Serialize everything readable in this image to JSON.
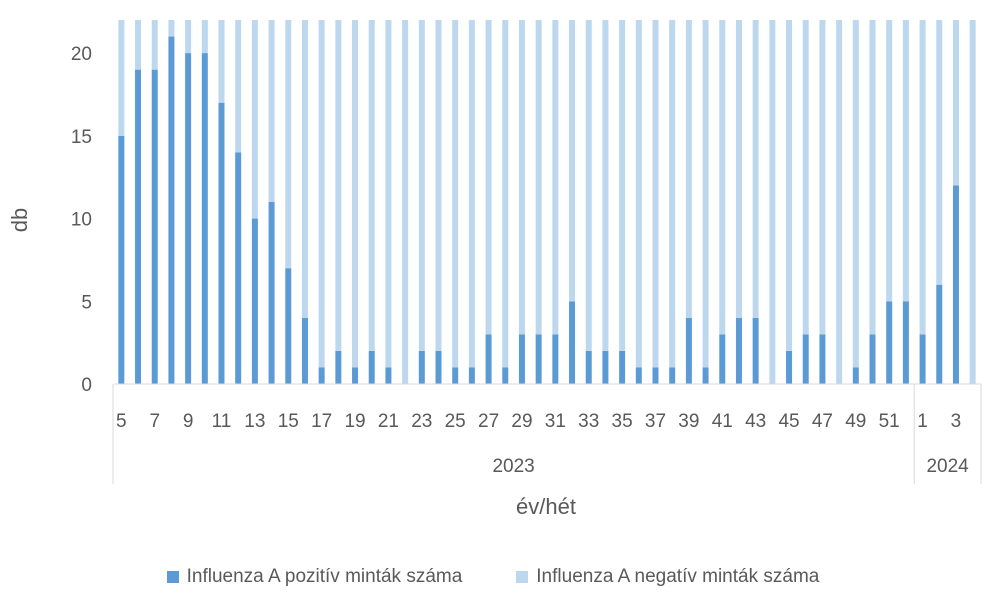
{
  "chart_data": {
    "type": "bar",
    "stacked": true,
    "xlabel": "év/hét",
    "ylabel": "db",
    "ylim": [
      0,
      22
    ],
    "yticks": [
      0,
      5,
      10,
      15,
      20
    ],
    "grid": false,
    "legend_position": "bottom",
    "categories": [
      "5",
      "6",
      "7",
      "8",
      "9",
      "10",
      "11",
      "12",
      "13",
      "14",
      "15",
      "16",
      "17",
      "18",
      "19",
      "20",
      "21",
      "22",
      "23",
      "24",
      "25",
      "26",
      "27",
      "28",
      "29",
      "30",
      "31",
      "32",
      "33",
      "34",
      "35",
      "36",
      "37",
      "38",
      "39",
      "40",
      "41",
      "42",
      "43",
      "44",
      "45",
      "46",
      "47",
      "48",
      "49",
      "50",
      "51",
      "52",
      "1",
      "2",
      "3",
      "4"
    ],
    "year_groups": [
      {
        "label": "2023",
        "start": 0,
        "end": 47
      },
      {
        "label": "2024",
        "start": 48,
        "end": 51
      }
    ],
    "series": [
      {
        "name": "Influenza A pozitív minták száma",
        "color": "#5B9BD5",
        "values": [
          15,
          19,
          19,
          21,
          20,
          20,
          17,
          14,
          10,
          11,
          7,
          4,
          1,
          2,
          1,
          2,
          1,
          0,
          2,
          2,
          1,
          1,
          3,
          1,
          3,
          3,
          3,
          5,
          2,
          2,
          2,
          1,
          1,
          1,
          4,
          1,
          3,
          4,
          4,
          0,
          2,
          3,
          3,
          0,
          1,
          3,
          5,
          5,
          3,
          6,
          12,
          0
        ]
      },
      {
        "name": "Influenza A negatív minták száma",
        "color": "#BDD7EE",
        "values": [
          7,
          3,
          3,
          1,
          2,
          2,
          5,
          8,
          12,
          11,
          15,
          18,
          21,
          20,
          21,
          20,
          21,
          22,
          20,
          20,
          21,
          21,
          19,
          21,
          19,
          19,
          19,
          17,
          20,
          20,
          20,
          21,
          21,
          21,
          18,
          21,
          19,
          18,
          18,
          22,
          20,
          19,
          19,
          22,
          21,
          19,
          17,
          17,
          19,
          16,
          10,
          22
        ]
      }
    ]
  }
}
